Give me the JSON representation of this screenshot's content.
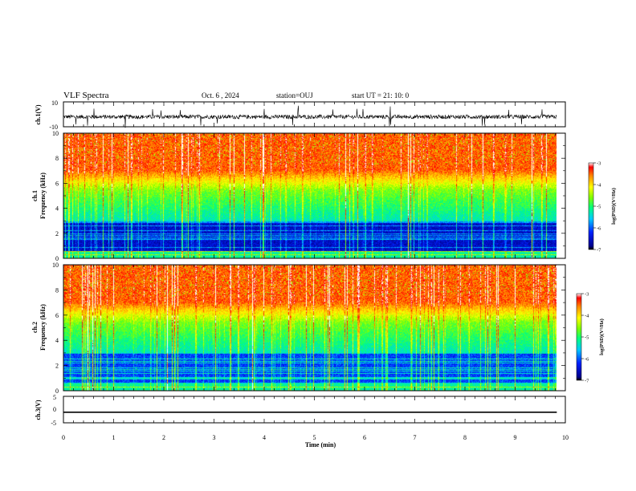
{
  "header": {
    "title": "VLF Spectra",
    "date": "Oct. 6  , 2024",
    "station": "station=OUJ",
    "start": "start  UT  =   21: 10: 0"
  },
  "chart_data": [
    {
      "type": "line",
      "panel": "ch1-waveform",
      "ylabel": "ch.1(V)",
      "ylim": [
        -10,
        10
      ],
      "ytick_labels": [
        "10",
        "-10"
      ],
      "baseline": -2,
      "xlim": [
        0,
        10
      ]
    },
    {
      "type": "heatmap",
      "panel": "ch1-spectrogram",
      "ylabel_top": "ch.1",
      "ylabel": "Frequency  (kHz)",
      "ylim": [
        0,
        10
      ],
      "ytick_labels": [
        "0",
        "2",
        "4",
        "6",
        "8",
        "10"
      ],
      "xlim": [
        0,
        9.83
      ],
      "colorbar": {
        "label": "log(PSD)(V²/Hz)",
        "range": [
          -7,
          -3
        ],
        "tick_labels": [
          "-3",
          "-4",
          "-5",
          "-6",
          "-7"
        ]
      }
    },
    {
      "type": "heatmap",
      "panel": "ch2-spectrogram",
      "ylabel_top": "ch.2",
      "ylabel": "Frequency  (kHz)",
      "ylim": [
        0,
        10
      ],
      "ytick_labels": [
        "0",
        "2",
        "4",
        "6",
        "8",
        "10"
      ],
      "xlim": [
        0,
        9.83
      ],
      "colorbar": {
        "label": "log(PSD)(V²/Hz)",
        "range": [
          -7,
          -3
        ],
        "tick_labels": [
          "-3",
          "-4",
          "-5",
          "-6",
          "-7"
        ]
      }
    },
    {
      "type": "line",
      "panel": "ch3-waveform",
      "ylabel": "ch.3(V)",
      "ylim": [
        -5,
        5
      ],
      "ytick_labels": [
        "5",
        "0",
        "-5"
      ],
      "values": [
        -1,
        -1
      ],
      "x": [
        0,
        9.83
      ],
      "xlim": [
        0,
        10
      ],
      "xlabel": "Time  (min)",
      "xtick_labels": [
        "0",
        "1",
        "2",
        "3",
        "4",
        "5",
        "6",
        "7",
        "8",
        "9",
        "10"
      ]
    }
  ],
  "colors": {
    "axis": "#000000",
    "background": "#ffffff"
  }
}
